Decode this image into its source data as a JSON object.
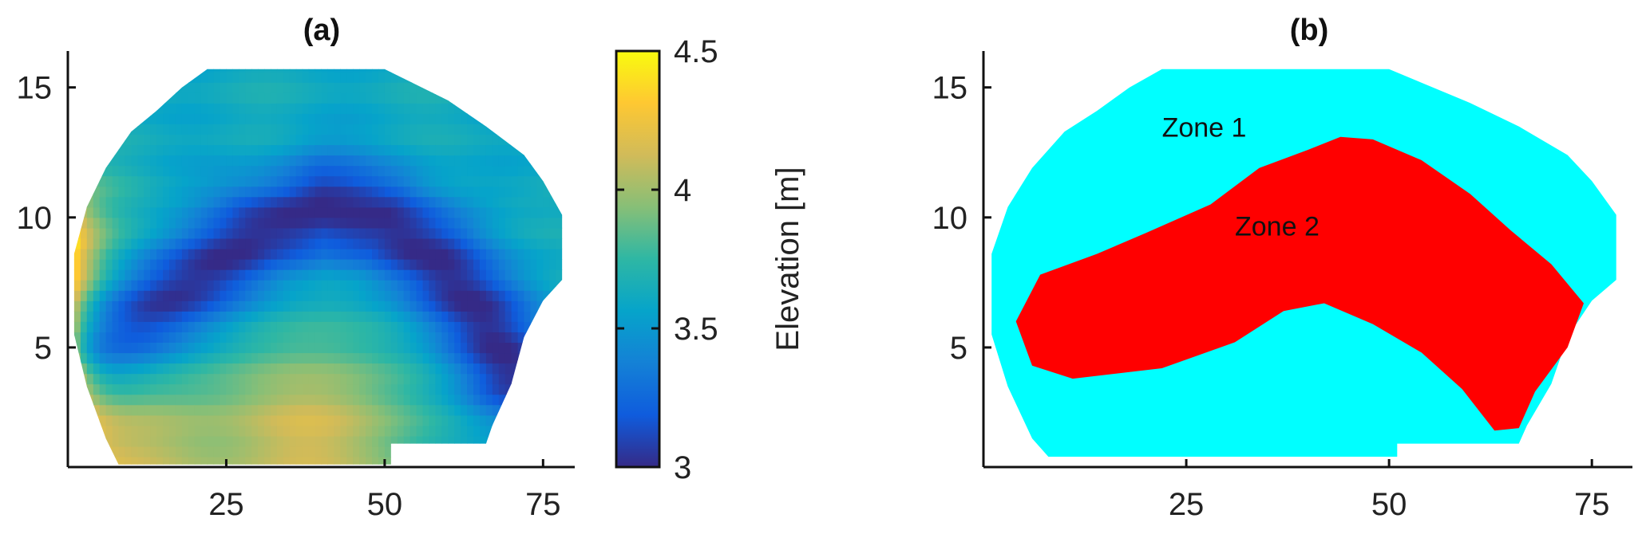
{
  "chart_data": [
    {
      "type": "heatmap",
      "title": "(a)",
      "xlabel": "",
      "ylabel": "",
      "xlim": [
        0,
        80
      ],
      "ylim": [
        0.4,
        16.4
      ],
      "xticks": [
        "25",
        "50",
        "75"
      ],
      "yticks": [
        "5",
        "10",
        "15"
      ],
      "grid": false,
      "colorbar": {
        "label": "Elevation [m]",
        "range": [
          3,
          4.5
        ],
        "ticks": [
          "3",
          "3.5",
          "4",
          "4.5"
        ],
        "colormap": [
          "#352a87",
          "#0f5cdd",
          "#1481d6",
          "#06a4ca",
          "#2eb7a4",
          "#87bf77",
          "#d1bb59",
          "#fec832",
          "#f9fb0e"
        ]
      },
      "boundary": [
        [
          22,
          15.7
        ],
        [
          50,
          15.7
        ],
        [
          60,
          14.5
        ],
        [
          66,
          13.5
        ],
        [
          72,
          12.4
        ],
        [
          75,
          11.4
        ],
        [
          78,
          10.1
        ],
        [
          78,
          7.6
        ],
        [
          75,
          6.8
        ],
        [
          72,
          5.4
        ],
        [
          70,
          3.6
        ],
        [
          67,
          2.0
        ],
        [
          66,
          1.3
        ],
        [
          51,
          1.3
        ],
        [
          51,
          0.5
        ],
        [
          8,
          0.5
        ],
        [
          6,
          1.5
        ],
        [
          3,
          3.5
        ],
        [
          1,
          5.5
        ],
        [
          1,
          8.6
        ],
        [
          3,
          10.4
        ],
        [
          6,
          11.9
        ],
        [
          10,
          13.3
        ],
        [
          14,
          14.1
        ],
        [
          18,
          15.0
        ]
      ],
      "features": {
        "base_elevation_m": 3.65,
        "north_level_m": 3.62,
        "channel_centerline": [
          [
            5,
            5.3
          ],
          [
            10,
            6.0
          ],
          [
            20,
            7.6
          ],
          [
            30,
            9.4
          ],
          [
            40,
            10.3
          ],
          [
            50,
            9.8
          ],
          [
            58,
            8.4
          ],
          [
            65,
            6.3
          ],
          [
            70,
            4.1
          ]
        ],
        "channel_min_elevation_m": 3.0,
        "west_high_m": 4.5,
        "south_mound_center": [
          38,
          1.6
        ],
        "south_mound_elevation_m": 4.15
      }
    },
    {
      "type": "heatmap",
      "title": "(b)",
      "xlabel": "",
      "ylabel": "",
      "xlim": [
        0,
        80
      ],
      "ylim": [
        0.4,
        16.4
      ],
      "xticks": [
        "25",
        "50",
        "75"
      ],
      "yticks": [
        "5",
        "10",
        "15"
      ],
      "grid": false,
      "zones": [
        {
          "name": "Zone 1",
          "color": "#00ffff",
          "label_at": [
            22,
            13.1
          ],
          "outline": [
            [
              22,
              15.7
            ],
            [
              50,
              15.7
            ],
            [
              60,
              14.4
            ],
            [
              66,
              13.5
            ],
            [
              72,
              12.4
            ],
            [
              75,
              11.4
            ],
            [
              78,
              10.1
            ],
            [
              78,
              7.6
            ],
            [
              75,
              6.8
            ],
            [
              72,
              5.4
            ],
            [
              70,
              3.6
            ],
            [
              67,
              2.0
            ],
            [
              66,
              1.3
            ],
            [
              51,
              1.3
            ],
            [
              51,
              0.8
            ],
            [
              8,
              0.8
            ],
            [
              6,
              1.5
            ],
            [
              3,
              3.5
            ],
            [
              1,
              5.5
            ],
            [
              1,
              8.6
            ],
            [
              3,
              10.4
            ],
            [
              6,
              11.9
            ],
            [
              10,
              13.3
            ],
            [
              14,
              14.1
            ],
            [
              18,
              15.0
            ]
          ]
        },
        {
          "name": "Zone 2",
          "color": "#ff0000",
          "label_at": [
            31,
            9.3
          ],
          "outline": [
            [
              7,
              7.8
            ],
            [
              14,
              8.6
            ],
            [
              20,
              9.4
            ],
            [
              28,
              10.5
            ],
            [
              34,
              11.9
            ],
            [
              40,
              12.6
            ],
            [
              44,
              13.1
            ],
            [
              48,
              13.0
            ],
            [
              54,
              12.2
            ],
            [
              60,
              10.9
            ],
            [
              65,
              9.5
            ],
            [
              70,
              8.2
            ],
            [
              74,
              6.7
            ],
            [
              72,
              5.0
            ],
            [
              68,
              3.3
            ],
            [
              66,
              1.9
            ],
            [
              63,
              1.8
            ],
            [
              59,
              3.4
            ],
            [
              54,
              4.8
            ],
            [
              48,
              5.9
            ],
            [
              42,
              6.7
            ],
            [
              37,
              6.4
            ],
            [
              31,
              5.2
            ],
            [
              22,
              4.2
            ],
            [
              11,
              3.8
            ],
            [
              6,
              4.3
            ],
            [
              4,
              6.0
            ]
          ]
        }
      ]
    }
  ]
}
